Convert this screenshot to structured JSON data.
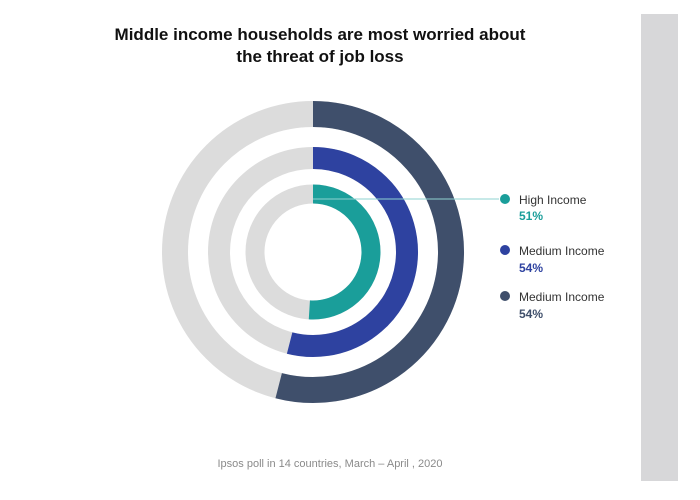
{
  "title_line1": "Middle income households are most worried about",
  "title_line2": "the threat of job loss",
  "source": "Ipsos poll in 14 countries, March – April , 2020",
  "colors": {
    "track": "#dcdcdc",
    "high": "#1a9e9a",
    "medium": "#2e42a0",
    "medium_outer": "#3f4f6b",
    "connector": "#8fd3d0"
  },
  "chart_data": {
    "type": "radial-bar",
    "title": "Middle income households are most worried about the threat of job loss",
    "unit": "%",
    "max": 100,
    "series": [
      {
        "name": "High Income",
        "value": 51,
        "value_label": "51%",
        "color": "#1a9e9a",
        "ring": "inner"
      },
      {
        "name": "Medium Income",
        "value": 54,
        "value_label": "54%",
        "color": "#2e42a0",
        "ring": "middle"
      },
      {
        "name": "Medium Income",
        "value": 54,
        "value_label": "54%",
        "color": "#3f4f6b",
        "ring": "outer"
      }
    ]
  }
}
